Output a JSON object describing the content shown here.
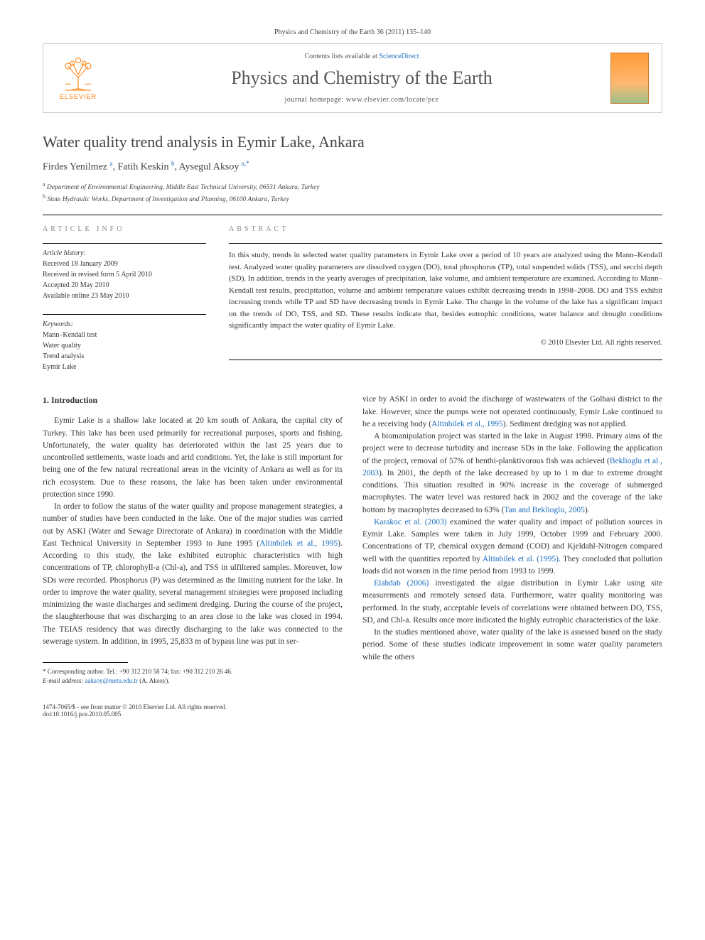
{
  "journal_ref": "Physics and Chemistry of the Earth 36 (2011) 135–140",
  "header": {
    "publisher": "ELSEVIER",
    "contents_prefix": "Contents lists available at ",
    "contents_link": "ScienceDirect",
    "journal_title": "Physics and Chemistry of the Earth",
    "homepage_prefix": "journal homepage: ",
    "homepage_url": "www.elsevier.com/locate/pce"
  },
  "article": {
    "title": "Water quality trend analysis in Eymir Lake, Ankara",
    "authors_html": "Firdes Yenilmez <sup class='author-link'>a</sup>, Fatih Keskin <sup class='author-link'>b</sup>, Aysegul Aksoy <sup class='author-link'>a,*</sup>",
    "affiliations": [
      "a Department of Environmental Engineering, Middle East Technical University, 06531 Ankara, Turkey",
      "b State Hydraulic Works, Department of Investigation and Planning, 06100 Ankara, Turkey"
    ]
  },
  "info": {
    "label": "ARTICLE INFO",
    "history_label": "Article history:",
    "history": [
      "Received 18 January 2009",
      "Received in revised form 5 April 2010",
      "Accepted 20 May 2010",
      "Available online 23 May 2010"
    ],
    "keywords_label": "Keywords:",
    "keywords": [
      "Mann–Kendall test",
      "Water quality",
      "Trend analysis",
      "Eymir Lake"
    ]
  },
  "abstract": {
    "label": "ABSTRACT",
    "text": "In this study, trends in selected water quality parameters in Eymir Lake over a period of 10 years are analyzed using the Mann–Kendall test. Analyzed water quality parameters are dissolved oxygen (DO), total phosphorus (TP), total suspended solids (TSS), and secchi depth (SD). In addition, trends in the yearly averages of precipitation, lake volume, and ambient temperature are examined. According to Mann–Kendall test results, precipitation, volume and ambient temperature values exhibit decreasing trends in 1998–2008. DO and TSS exhibit increasing trends while TP and SD have decreasing trends in Eymir Lake. The change in the volume of the lake has a significant impact on the trends of DO, TSS, and SD. These results indicate that, besides eutrophic conditions, water balance and drought conditions significantly impact the water quality of Eymir Lake.",
    "copyright": "© 2010 Elsevier Ltd. All rights reserved."
  },
  "body": {
    "intro_heading": "1. Introduction",
    "left_paragraphs": [
      "Eymir Lake is a shallow lake located at 20 km south of Ankara, the capital city of Turkey. This lake has been used primarily for recreational purposes, sports and fishing. Unfortunately, the water quality has deteriorated within the last 25 years due to uncontrolled settlements, waste loads and arid conditions. Yet, the lake is still important for being one of the few natural recreational areas in the vicinity of Ankara as well as for its rich ecosystem. Due to these reasons, the lake has been taken under environmental protection since 1990.",
      "In order to follow the status of the water quality and propose management strategies, a number of studies have been conducted in the lake. One of the major studies was carried out by ASKI (Water and Sewage Directorate of Ankara) in coordination with the Middle East Technical University in September 1993 to June 1995 (<span class='cite'>Altinbilek et al., 1995</span>). According to this study, the lake exhibited eutrophic characteristics with high concentrations of TP, chlorophyll-a (Chl-a), and TSS in ulfiltered samples. Moreover, low SDs were recorded. Phosphorus (P) was determined as the limiting nutrient for the lake. In order to improve the water quality, several management strategies were proposed including minimizing the waste discharges and sediment dredging. During the course of the project, the slaughterhouse that was discharging to an area close to the lake was closed in 1994. The TEIAS residency that was directly discharging to the lake was connected to the sewerage system. In addition, in 1995, 25,833 m of bypass line was put in ser-"
    ],
    "right_paragraphs": [
      "vice by ASKI in order to avoid the discharge of wastewaters of the Golbasi district to the lake. However, since the pumps were not operated continuously, Eymir Lake continued to be a receiving body (<span class='cite'>Altinbilek et al., 1995</span>). Sediment dredging was not applied.",
      "A biomanipulation project was started in the lake in August 1998. Primary aims of the project were to decrease turbidity and increase SDs in the lake. Following the application of the project, removal of 57% of benthi-planktivorous fish was achieved (<span class='cite'>Beklioglu et al., 2003</span>). In 2001, the depth of the lake decreased by up to 1 m due to extreme drought conditions. This situation resulted in 90% increase in the coverage of submerged macrophytes. The water level was restored back in 2002 and the coverage of the lake bottom by macrophytes decreased to 63% (<span class='cite'>Tan and Beklioglu, 2005</span>).",
      "<span class='cite'>Karakoc et al. (2003)</span> examined the water quality and impact of pollution sources in Eymir Lake. Samples were taken in July 1999, October 1999 and February 2000. Concentrations of TP, chemical oxygen demand (COD) and Kjeldahl-Nitrogen compared well with the quantities reported by <span class='cite'>Altinbilek et al. (1995)</span>. They concluded that pollution loads did not worsen in the time period from 1993 to 1999.",
      "<span class='cite'>Elahdab (2006)</span> investigated the algae distribution in Eymir Lake using site measurements and remotely sensed data. Furthermore, water quality monitoring was performed. In the study, acceptable levels of correlations were obtained between DO, TSS, SD, and Chl-a. Results once more indicated the highly eutrophic characteristics of the lake.",
      "In the studies mentioned above, water quality of the lake is assessed based on the study period. Some of these studies indicate improvement in some water quality parameters while the others"
    ]
  },
  "footnote": {
    "corr": "* Corresponding author. Tel.: +90 312 210 58 74; fax: +90 312 210 26 46.",
    "email_label": "E-mail address:",
    "email": "aaksoy@metu.edu.tr",
    "email_suffix": "(A. Aksoy)."
  },
  "footer": {
    "left_line1": "1474-7065/$ - see front matter © 2010 Elsevier Ltd. All rights reserved.",
    "left_line2": "doi:10.1016/j.pce.2010.05.005"
  },
  "colors": {
    "link": "#1a6bbf",
    "orange": "#ff7a00",
    "text": "#333333",
    "muted": "#888888"
  }
}
